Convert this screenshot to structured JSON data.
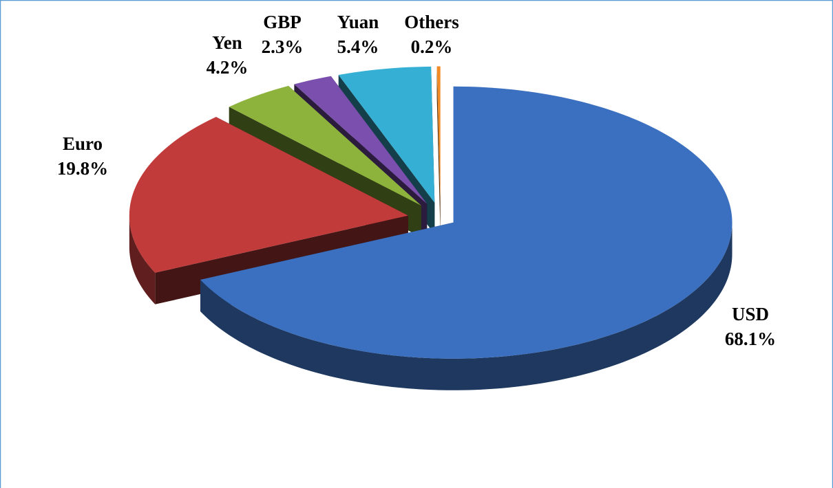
{
  "chart_data": {
    "type": "pie3d",
    "categories": [
      "USD",
      "Euro",
      "Yen",
      "GBP",
      "Yuan",
      "Others"
    ],
    "values": [
      68.1,
      19.8,
      4.2,
      2.3,
      5.4,
      0.2
    ],
    "value_labels": [
      "68.1%",
      "19.8%",
      "4.2%",
      "2.3%",
      "5.4%",
      "0.2%"
    ],
    "colors": [
      "#3b6fbf",
      "#c23b3b",
      "#8db33d",
      "#7b4fae",
      "#35b0d4",
      "#f28b25"
    ]
  }
}
